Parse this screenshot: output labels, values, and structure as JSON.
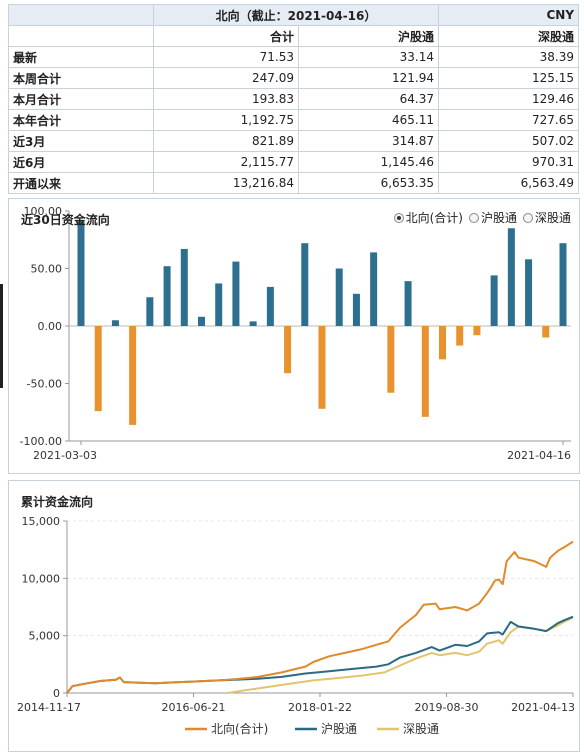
{
  "table": {
    "title": "北向（截止：2021-04-16）",
    "currency": "CNY",
    "columns": [
      "合计",
      "沪股通",
      "深股通"
    ],
    "rows": [
      {
        "label": "最新",
        "values": [
          "71.53",
          "33.14",
          "38.39"
        ]
      },
      {
        "label": "本周合计",
        "values": [
          "247.09",
          "121.94",
          "125.15"
        ]
      },
      {
        "label": "本月合计",
        "values": [
          "193.83",
          "64.37",
          "129.46"
        ]
      },
      {
        "label": "本年合计",
        "values": [
          "1,192.75",
          "465.11",
          "727.65"
        ]
      },
      {
        "label": "近3月",
        "values": [
          "821.89",
          "314.87",
          "507.02"
        ]
      },
      {
        "label": "近6月",
        "values": [
          "2,115.77",
          "1,145.46",
          "970.31"
        ]
      },
      {
        "label": "开通以来",
        "values": [
          "13,216.84",
          "6,653.35",
          "6,563.49"
        ]
      }
    ]
  },
  "chart_data": [
    {
      "type": "bar",
      "title": "近30日资金流向",
      "options": [
        {
          "label": "北向(合计)",
          "selected": true
        },
        {
          "label": "沪股通",
          "selected": false
        },
        {
          "label": "深股通",
          "selected": false
        }
      ],
      "x_start": "2021-03-03",
      "x_end": "2021-04-16",
      "ylim": [
        -100,
        100
      ],
      "yticks": [
        "100.00",
        "50.00",
        "0.00",
        "-50.00",
        "-100.00"
      ],
      "yticks_values": [
        100,
        50,
        0,
        -50,
        -100
      ],
      "values": [
        91,
        -74,
        5,
        -86,
        25,
        52,
        67,
        8,
        37,
        56,
        4,
        34,
        -41,
        72,
        -72,
        50,
        28,
        64,
        -58,
        39,
        -79,
        -29,
        -17,
        -8,
        44,
        85,
        58,
        -10,
        72
      ],
      "colors": {
        "positive": "#2c6f8f",
        "negative": "#e8922e"
      }
    },
    {
      "type": "line",
      "title": "累计资金流向",
      "ylim": [
        0,
        15000
      ],
      "yticks": [
        "15,000",
        "10,000",
        "5,000",
        "0"
      ],
      "yticks_values": [
        15000,
        10000,
        5000,
        0
      ],
      "xticks": [
        "2014-11-17",
        "2016-06-21",
        "2018-01-22",
        "2019-08-30",
        "2021-04-13"
      ],
      "x_range": [
        2014.88,
        2021.29
      ],
      "series": [
        {
          "name": "北向(合计)",
          "color": "#e08a28",
          "points": [
            [
              2014.88,
              0
            ],
            [
              2014.95,
              600
            ],
            [
              2015.1,
              800
            ],
            [
              2015.3,
              1050
            ],
            [
              2015.5,
              1150
            ],
            [
              2015.55,
              1350
            ],
            [
              2015.6,
              950
            ],
            [
              2015.8,
              900
            ],
            [
              2016.0,
              850
            ],
            [
              2016.3,
              950
            ],
            [
              2016.5,
              1000
            ],
            [
              2016.8,
              1100
            ],
            [
              2017.0,
              1200
            ],
            [
              2017.3,
              1400
            ],
            [
              2017.6,
              1800
            ],
            [
              2017.9,
              2300
            ],
            [
              2018.0,
              2700
            ],
            [
              2018.2,
              3200
            ],
            [
              2018.4,
              3500
            ],
            [
              2018.6,
              3800
            ],
            [
              2018.8,
              4200
            ],
            [
              2018.95,
              4500
            ],
            [
              2019.1,
              5700
            ],
            [
              2019.3,
              6800
            ],
            [
              2019.4,
              7700
            ],
            [
              2019.55,
              7800
            ],
            [
              2019.6,
              7300
            ],
            [
              2019.8,
              7500
            ],
            [
              2019.95,
              7200
            ],
            [
              2020.1,
              7800
            ],
            [
              2020.2,
              8700
            ],
            [
              2020.25,
              9200
            ],
            [
              2020.3,
              9800
            ],
            [
              2020.35,
              9900
            ],
            [
              2020.4,
              9500
            ],
            [
              2020.45,
              11500
            ],
            [
              2020.55,
              12300
            ],
            [
              2020.6,
              11800
            ],
            [
              2020.8,
              11500
            ],
            [
              2020.95,
              11000
            ],
            [
              2021.0,
              11800
            ],
            [
              2021.1,
              12400
            ],
            [
              2021.2,
              12800
            ],
            [
              2021.29,
              13200
            ]
          ]
        },
        {
          "name": "沪股通",
          "color": "#2a6a86",
          "points": [
            [
              2014.88,
              0
            ],
            [
              2014.95,
              600
            ],
            [
              2015.1,
              800
            ],
            [
              2015.3,
              1050
            ],
            [
              2015.5,
              1150
            ],
            [
              2015.55,
              1350
            ],
            [
              2015.6,
              950
            ],
            [
              2015.8,
              900
            ],
            [
              2016.0,
              850
            ],
            [
              2016.3,
              950
            ],
            [
              2016.5,
              1000
            ],
            [
              2016.8,
              1100
            ],
            [
              2017.0,
              1150
            ],
            [
              2017.3,
              1250
            ],
            [
              2017.6,
              1400
            ],
            [
              2017.9,
              1700
            ],
            [
              2018.2,
              1900
            ],
            [
              2018.5,
              2100
            ],
            [
              2018.8,
              2300
            ],
            [
              2018.95,
              2500
            ],
            [
              2019.1,
              3100
            ],
            [
              2019.3,
              3500
            ],
            [
              2019.5,
              4000
            ],
            [
              2019.6,
              3700
            ],
            [
              2019.8,
              4200
            ],
            [
              2019.95,
              4100
            ],
            [
              2020.1,
              4500
            ],
            [
              2020.2,
              5200
            ],
            [
              2020.35,
              5300
            ],
            [
              2020.4,
              5100
            ],
            [
              2020.5,
              6200
            ],
            [
              2020.6,
              5800
            ],
            [
              2020.8,
              5600
            ],
            [
              2020.95,
              5400
            ],
            [
              2021.1,
              6100
            ],
            [
              2021.2,
              6400
            ],
            [
              2021.29,
              6650
            ]
          ]
        },
        {
          "name": "深股通",
          "color": "#e2c46a",
          "points": [
            [
              2016.92,
              0
            ],
            [
              2017.1,
              200
            ],
            [
              2017.4,
              500
            ],
            [
              2017.7,
              800
            ],
            [
              2018.0,
              1100
            ],
            [
              2018.3,
              1300
            ],
            [
              2018.6,
              1500
            ],
            [
              2018.9,
              1800
            ],
            [
              2019.1,
              2400
            ],
            [
              2019.3,
              3000
            ],
            [
              2019.5,
              3500
            ],
            [
              2019.6,
              3300
            ],
            [
              2019.8,
              3500
            ],
            [
              2019.95,
              3300
            ],
            [
              2020.1,
              3600
            ],
            [
              2020.2,
              4300
            ],
            [
              2020.35,
              4600
            ],
            [
              2020.4,
              4300
            ],
            [
              2020.5,
              5300
            ],
            [
              2020.6,
              5800
            ],
            [
              2020.8,
              5600
            ],
            [
              2020.95,
              5400
            ],
            [
              2021.1,
              5900
            ],
            [
              2021.2,
              6300
            ],
            [
              2021.29,
              6560
            ]
          ]
        }
      ]
    }
  ]
}
